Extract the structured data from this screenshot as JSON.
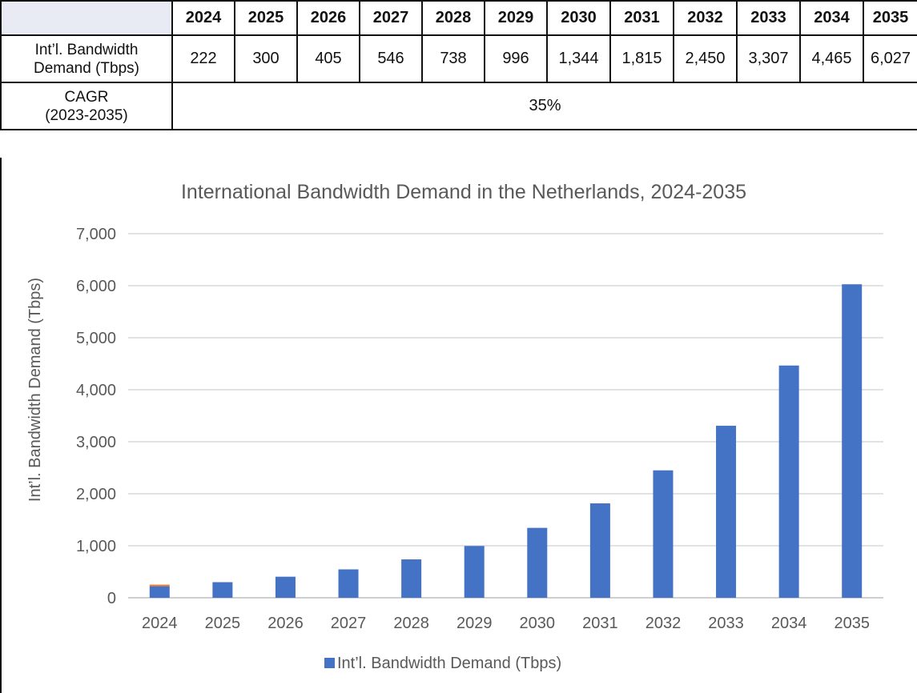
{
  "table": {
    "years": [
      "2024",
      "2025",
      "2026",
      "2027",
      "2028",
      "2029",
      "2030",
      "2031",
      "2032",
      "2033",
      "2034",
      "2035"
    ],
    "row1_label_line1": "Int’l. Bandwidth",
    "row1_label_line2": "Demand (Tbps)",
    "row1_values": [
      "222",
      "300",
      "405",
      "546",
      "738",
      "996",
      "1,344",
      "1,815",
      "2,450",
      "3,307",
      "4,465",
      "6,027"
    ],
    "row2_label_line1": "CAGR",
    "row2_label_line2": "(2023-2035)",
    "row2_value": "35%",
    "header_bg": "#e8ebf3"
  },
  "chart_data": {
    "type": "bar",
    "title": "International Bandwidth Demand in the Netherlands, 2024-2035",
    "xlabel": "",
    "ylabel": "Int’l. Bandwidth Demand (Tbps)",
    "categories": [
      "2024",
      "2025",
      "2026",
      "2027",
      "2028",
      "2029",
      "2030",
      "2031",
      "2032",
      "2033",
      "2034",
      "2035"
    ],
    "series": [
      {
        "name": "Int’l. Bandwidth Demand (Tbps)",
        "color": "#4472c4",
        "values": [
          222,
          300,
          405,
          546,
          738,
          996,
          1344,
          1815,
          2450,
          3307,
          4465,
          6027
        ]
      }
    ],
    "ylim": [
      0,
      7000
    ],
    "yticks": [
      0,
      1000,
      2000,
      3000,
      4000,
      5000,
      6000,
      7000
    ],
    "ytick_labels": [
      "0",
      "1,000",
      "2,000",
      "3,000",
      "4,000",
      "5,000",
      "6,000",
      "7,000"
    ],
    "grid": true,
    "legend_position": "bottom",
    "first_bar_top_accent": "#ed7d31"
  }
}
